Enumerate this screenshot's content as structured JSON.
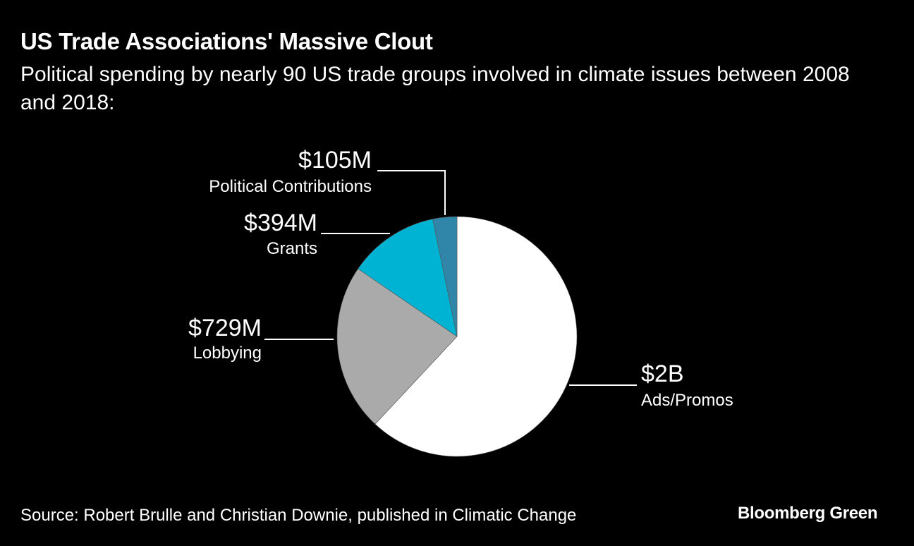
{
  "chart_data": {
    "type": "pie",
    "title": "US Trade Associations' Massive Clout",
    "subtitle": "Political spending by nearly 90 US trade groups involved in climate issues between 2008 and 2018:",
    "slices": [
      {
        "label": "Ads/Promos",
        "value_label": "$2B",
        "value": 2000,
        "color": "#ffffff"
      },
      {
        "label": "Lobbying",
        "value_label": "$729M",
        "value": 729,
        "color": "#aaaaaa"
      },
      {
        "label": "Grants",
        "value_label": "$394M",
        "value": 394,
        "color": "#00b3d3"
      },
      {
        "label": "Political Contributions",
        "value_label": "$105M",
        "value": 105,
        "color": "#2f86a8"
      }
    ],
    "unit": "USD millions",
    "source": "Source: Robert Brulle and Christian Downie, published in Climatic Change"
  },
  "branding": {
    "logo": "Bloomberg Green"
  }
}
